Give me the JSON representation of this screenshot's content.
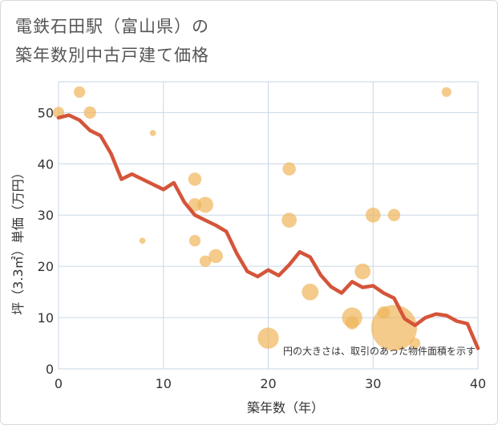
{
  "title_line1": "電鉄石田駅（富山県）の",
  "title_line2": "築年数別中古戸建て価格",
  "chart_data": {
    "type": "scatter",
    "xlabel": "築年数（年）",
    "ylabel": "坪（3.3㎡）単価（万円）",
    "xlim": [
      0,
      40
    ],
    "ylim": [
      0,
      56
    ],
    "xticks": [
      0,
      10,
      20,
      30,
      40
    ],
    "yticks": [
      0,
      10,
      20,
      30,
      40,
      50
    ],
    "grid": true,
    "annotation": "円の大きさは、取引のあった物件面積を示す",
    "colors": {
      "points": "#f0b55a",
      "line": "#d4553a"
    },
    "points": [
      {
        "x": 0,
        "y": 50,
        "size": 1.3
      },
      {
        "x": 2,
        "y": 54,
        "size": 1.3
      },
      {
        "x": 3,
        "y": 50,
        "size": 1.4
      },
      {
        "x": 8,
        "y": 25,
        "size": 0.7
      },
      {
        "x": 9,
        "y": 46,
        "size": 0.7
      },
      {
        "x": 13,
        "y": 37,
        "size": 1.5
      },
      {
        "x": 13,
        "y": 32,
        "size": 1.5
      },
      {
        "x": 13,
        "y": 25,
        "size": 1.3
      },
      {
        "x": 14,
        "y": 32,
        "size": 1.8
      },
      {
        "x": 14,
        "y": 21,
        "size": 1.3
      },
      {
        "x": 15,
        "y": 22,
        "size": 1.6
      },
      {
        "x": 20,
        "y": 6,
        "size": 2.4
      },
      {
        "x": 22,
        "y": 39,
        "size": 1.5
      },
      {
        "x": 22,
        "y": 29,
        "size": 1.7
      },
      {
        "x": 24,
        "y": 15,
        "size": 1.9
      },
      {
        "x": 28,
        "y": 10,
        "size": 2.3
      },
      {
        "x": 28,
        "y": 9,
        "size": 1.5
      },
      {
        "x": 29,
        "y": 19,
        "size": 1.8
      },
      {
        "x": 30,
        "y": 30,
        "size": 1.7
      },
      {
        "x": 31,
        "y": 11,
        "size": 1.4
      },
      {
        "x": 32,
        "y": 30,
        "size": 1.4
      },
      {
        "x": 32,
        "y": 8,
        "size": 5.2
      },
      {
        "x": 34,
        "y": 5,
        "size": 1.2
      },
      {
        "x": 37,
        "y": 54,
        "size": 1.1
      }
    ],
    "trend": {
      "x": [
        0,
        1,
        2,
        3,
        4,
        5,
        6,
        7,
        8,
        9,
        10,
        11,
        12,
        13,
        14,
        15,
        16,
        17,
        18,
        19,
        20,
        21,
        22,
        23,
        24,
        25,
        26,
        27,
        28,
        29,
        30,
        31,
        32,
        33,
        34,
        35,
        36,
        37,
        38,
        39,
        40
      ],
      "y": [
        49,
        49.5,
        48.5,
        46.5,
        45.5,
        42,
        37,
        38,
        37,
        36,
        35,
        36.3,
        32.5,
        30,
        29,
        28,
        26.8,
        22.5,
        19,
        18,
        19.3,
        18.2,
        20.3,
        22.8,
        21.8,
        18.3,
        16,
        14.8,
        17,
        15.9,
        16.2,
        14.8,
        13.8,
        9.8,
        8.5,
        10,
        10.7,
        10.4,
        9.3,
        8.8,
        4
      ]
    }
  }
}
